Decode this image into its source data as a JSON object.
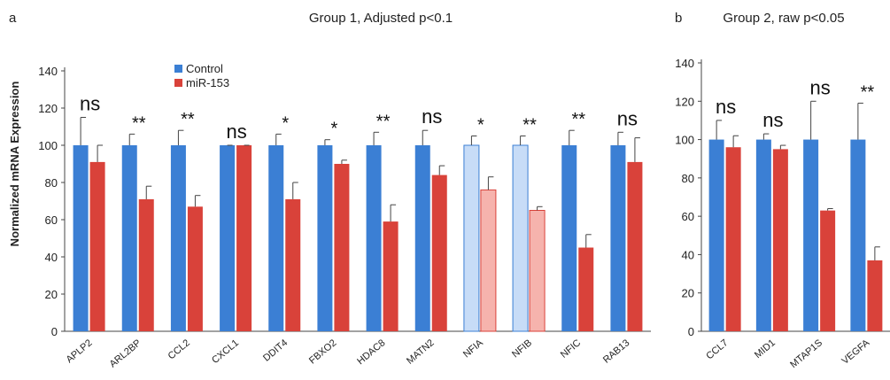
{
  "chart_data": [
    {
      "type": "bar",
      "panel_label": "a",
      "title": "Group 1, Adjusted p<0.1",
      "ylabel": "Normalized mRNA Expression",
      "xlabel": "",
      "ylim": [
        0,
        140
      ],
      "yticks": [
        0,
        20,
        40,
        60,
        80,
        100,
        120,
        140
      ],
      "grid": false,
      "legend_position": "top-left",
      "categories": [
        "APLP2",
        "ARL2BP",
        "CCL2",
        "CXCL1",
        "DDIT4",
        "FBXO2",
        "HDAC8",
        "MATN2",
        "NFIA",
        "NFIB",
        "NFIC",
        "RAB13"
      ],
      "light_categories": [
        "NFIA",
        "NFIB"
      ],
      "series": [
        {
          "name": "Control",
          "color": "#3b7fd4",
          "values": [
            100,
            100,
            100,
            100,
            100,
            100,
            100,
            100,
            100,
            100,
            100,
            100
          ],
          "errors": [
            15,
            6,
            8,
            0,
            6,
            3,
            7,
            8,
            5,
            5,
            8,
            7
          ]
        },
        {
          "name": "miR-153",
          "color": "#d9423a",
          "values": [
            91,
            71,
            67,
            100,
            71,
            90,
            59,
            84,
            76,
            65,
            45,
            91
          ],
          "errors": [
            9,
            7,
            6,
            0,
            9,
            2,
            9,
            5,
            7,
            2,
            7,
            13
          ]
        }
      ],
      "significance": [
        "ns",
        "**",
        "**",
        "ns",
        "*",
        "*",
        "**",
        "ns",
        "*",
        "**",
        "**",
        "ns"
      ]
    },
    {
      "type": "bar",
      "panel_label": "b",
      "title": "Group 2, raw p<0.05",
      "ylabel": "",
      "xlabel": "",
      "ylim": [
        0,
        140
      ],
      "yticks": [
        0,
        20,
        40,
        60,
        80,
        100,
        120,
        140
      ],
      "grid": false,
      "categories": [
        "CCL7",
        "MID1",
        "MTAP1S",
        "VEGFA"
      ],
      "series": [
        {
          "name": "Control",
          "color": "#3b7fd4",
          "values": [
            100,
            100,
            100,
            100
          ],
          "errors": [
            10,
            3,
            20,
            19
          ]
        },
        {
          "name": "miR-153",
          "color": "#d9423a",
          "values": [
            96,
            95,
            63,
            37
          ],
          "errors": [
            6,
            2,
            1,
            7
          ]
        }
      ],
      "significance": [
        "ns",
        "ns",
        "ns",
        "**"
      ]
    }
  ]
}
